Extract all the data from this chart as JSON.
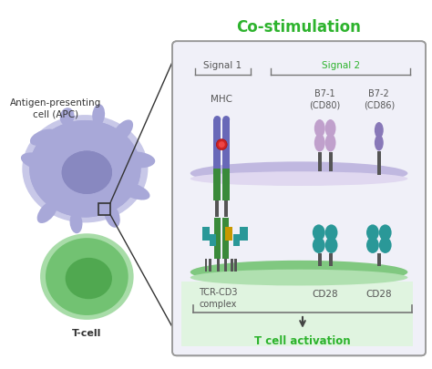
{
  "title": "Co-stimulation",
  "title_color": "#2db32d",
  "bg_color": "#ffffff",
  "apc_label": "Antigen-presenting\ncell (APC)",
  "tcell_label": "T-cell",
  "signal1_label": "Signal 1",
  "signal2_label": "Signal 2",
  "mhc_label": "MHC",
  "b71_label": "B7-1\n(CD80)",
  "b72_label": "B7-2\n(CD86)",
  "tcr_label": "TCR-CD3\ncomplex",
  "cd28a_label": "CD28",
  "cd28b_label": "CD28",
  "activation_label": "T cell activation",
  "apc_cell_color": "#a8a8d8",
  "apc_cell_light": "#c8c8e8",
  "apc_nucleus_color": "#8888c0",
  "tcell_color": "#72c272",
  "tcell_light": "#a8dca8",
  "tcell_nucleus_color": "#50a850",
  "panel_bg": "#f0f0f8",
  "panel_edge": "#999999",
  "apc_mem_color": "#c0b8e0",
  "apc_mem_inner": "#e0d8f0",
  "tcell_mem_color": "#80c880",
  "tcell_mem_inner": "#b0e0b0",
  "tcell_area_bg": "#e0f4e0",
  "mhc_purple": "#6868b8",
  "mhc_green": "#3a8a3a",
  "tcr_green": "#3a8a3a",
  "cd3_teal": "#2a9898",
  "cd3_yellow": "#c89800",
  "cd28_teal": "#2a9898",
  "b71_light_purple": "#c0a0cc",
  "b72_purple": "#8878b8",
  "red_dot": "#cc2222",
  "signal2_color": "#2db32d",
  "gray_label": "#555555",
  "dark_label": "#333333",
  "stem_color": "#555555",
  "bracket_color": "#777777",
  "arrow_color": "#444444"
}
